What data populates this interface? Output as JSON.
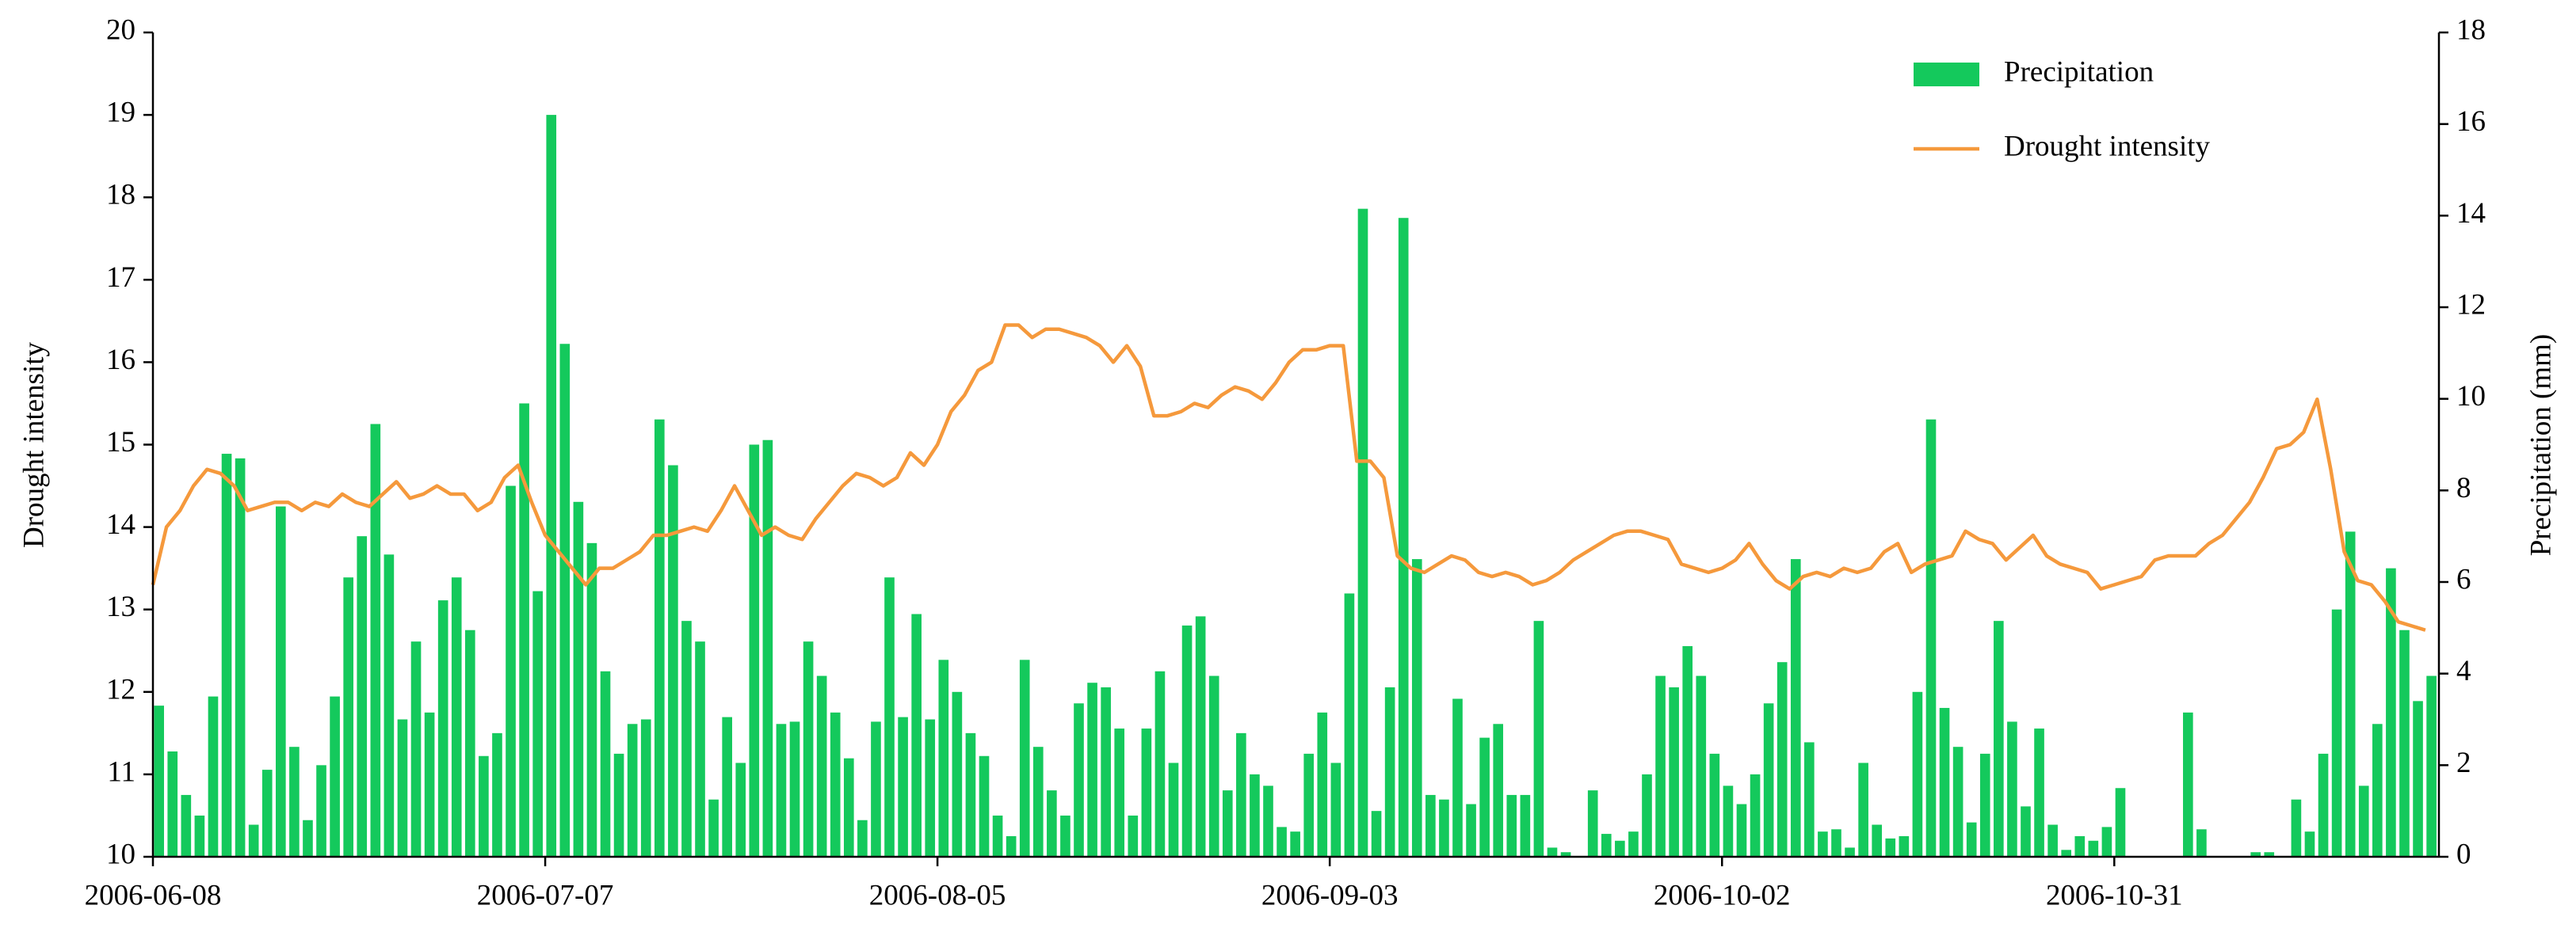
{
  "chart_data": {
    "type": "bar",
    "y_label": "Drought intensity",
    "y2_label": "Precipitation (mm)",
    "categories": [
      "2006-06-08",
      null,
      null,
      null,
      null,
      null,
      null,
      null,
      null,
      null,
      null,
      null,
      null,
      null,
      null,
      null,
      null,
      null,
      null,
      null,
      null,
      null,
      null,
      null,
      null,
      null,
      null,
      null,
      null,
      "2006-07-07",
      null,
      null,
      null,
      null,
      null,
      null,
      null,
      null,
      null,
      null,
      null,
      null,
      null,
      null,
      null,
      null,
      null,
      null,
      null,
      null,
      null,
      null,
      null,
      null,
      null,
      null,
      null,
      null,
      "2006-08-05",
      null,
      null,
      null,
      null,
      null,
      null,
      null,
      null,
      null,
      null,
      null,
      null,
      null,
      null,
      null,
      null,
      null,
      null,
      null,
      null,
      null,
      null,
      null,
      null,
      null,
      null,
      null,
      null,
      "2006-09-03",
      null,
      null,
      null,
      null,
      null,
      null,
      null,
      null,
      null,
      null,
      null,
      null,
      null,
      null,
      null,
      null,
      null,
      null,
      null,
      null,
      null,
      null,
      null,
      null,
      null,
      null,
      null,
      null,
      "2006-10-02",
      null,
      null,
      null,
      null,
      null,
      null,
      null,
      null,
      null,
      null,
      null,
      null,
      null,
      null,
      null,
      null,
      null,
      null,
      null,
      null,
      null,
      null,
      null,
      null,
      null,
      null,
      null,
      null,
      "2006-10-31",
      null,
      null,
      null,
      null,
      null,
      null,
      null,
      null,
      null,
      null,
      null,
      null,
      null,
      null,
      null,
      null,
      null,
      null,
      null,
      null,
      null,
      null,
      null
    ],
    "series": [
      {
        "name": "Precipitation",
        "type": "bar",
        "axis": "y2",
        "color": "#14c95c",
        "values": [
          3.3,
          2.3,
          1.35,
          0.9,
          3.5,
          8.8,
          8.7,
          0.7,
          1.9,
          7.65,
          2.4,
          0.8,
          2.0,
          3.5,
          6.1,
          7.0,
          9.45,
          6.6,
          3.0,
          4.7,
          3.15,
          5.6,
          6.1,
          4.95,
          2.2,
          2.7,
          8.1,
          9.9,
          5.8,
          16.2,
          11.2,
          7.75,
          6.85,
          4.05,
          2.25,
          2.9,
          3.0,
          9.55,
          8.55,
          5.15,
          4.7,
          1.25,
          3.05,
          2.05,
          9.0,
          9.1,
          2.9,
          2.95,
          4.7,
          3.95,
          3.15,
          2.15,
          0.8,
          2.95,
          6.1,
          3.05,
          5.3,
          3.0,
          4.3,
          3.6,
          2.7,
          2.2,
          0.9,
          0.45,
          4.3,
          2.4,
          1.45,
          0.9,
          3.35,
          3.8,
          3.7,
          2.8,
          0.9,
          2.8,
          4.05,
          2.05,
          5.05,
          5.25,
          3.95,
          1.45,
          2.7,
          1.8,
          1.55,
          0.65,
          0.55,
          2.25,
          3.15,
          2.05,
          5.75,
          14.15,
          1.0,
          3.7,
          13.95,
          6.5,
          1.35,
          1.25,
          3.45,
          1.15,
          2.6,
          2.9,
          1.35,
          1.35,
          5.15,
          0.2,
          0.1,
          0,
          1.45,
          0.5,
          0.35,
          0.55,
          1.8,
          3.95,
          3.7,
          4.6,
          3.95,
          2.25,
          1.55,
          1.15,
          1.8,
          3.35,
          4.25,
          6.5,
          2.5,
          0.55,
          0.6,
          0.2,
          2.05,
          0.7,
          0.4,
          0.45,
          3.6,
          9.55,
          3.25,
          2.4,
          0.75,
          2.25,
          5.15,
          2.95,
          1.1,
          2.8,
          0.7,
          0.15,
          0.45,
          0.35,
          0.65,
          1.5,
          0,
          0,
          0,
          0,
          3.15,
          0.6,
          0,
          0,
          0,
          0.1,
          0.1,
          0,
          1.25,
          0.55,
          2.25,
          5.4,
          7.1,
          1.55,
          2.9,
          6.3,
          4.95,
          3.4,
          3.95
        ]
      },
      {
        "name": "Drought intensity",
        "type": "line",
        "color": "#f5993c",
        "values": [
          13.3,
          14.0,
          14.2,
          14.5,
          14.7,
          14.65,
          14.5,
          14.2,
          14.25,
          14.3,
          14.3,
          14.2,
          14.3,
          14.25,
          14.4,
          14.3,
          14.25,
          14.4,
          14.55,
          14.35,
          14.4,
          14.5,
          14.4,
          14.4,
          14.2,
          14.3,
          14.6,
          14.75,
          14.3,
          13.9,
          13.7,
          13.5,
          13.3,
          13.5,
          13.5,
          13.6,
          13.7,
          13.9,
          13.9,
          13.95,
          14.0,
          13.95,
          14.2,
          14.5,
          14.2,
          13.9,
          14.0,
          13.9,
          13.85,
          14.1,
          14.3,
          14.5,
          14.65,
          14.6,
          14.5,
          14.6,
          14.9,
          14.75,
          15.0,
          15.4,
          15.6,
          15.9,
          16.0,
          16.45,
          16.45,
          16.3,
          16.4,
          16.4,
          16.35,
          16.3,
          16.2,
          16.0,
          16.2,
          15.95,
          15.35,
          15.35,
          15.4,
          15.5,
          15.45,
          15.6,
          15.7,
          15.65,
          15.55,
          15.75,
          16.0,
          16.15,
          16.15,
          16.2,
          16.2,
          14.8,
          14.8,
          14.6,
          13.65,
          13.5,
          13.45,
          13.55,
          13.65,
          13.6,
          13.45,
          13.4,
          13.45,
          13.4,
          13.3,
          13.35,
          13.45,
          13.6,
          13.7,
          13.8,
          13.9,
          13.95,
          13.95,
          13.9,
          13.85,
          13.55,
          13.5,
          13.45,
          13.5,
          13.6,
          13.8,
          13.55,
          13.35,
          13.25,
          13.4,
          13.45,
          13.4,
          13.5,
          13.45,
          13.5,
          13.7,
          13.8,
          13.45,
          13.55,
          13.6,
          13.65,
          13.95,
          13.85,
          13.8,
          13.6,
          13.75,
          13.9,
          13.65,
          13.55,
          13.5,
          13.45,
          13.25,
          13.3,
          13.35,
          13.4,
          13.6,
          13.65,
          13.65,
          13.65,
          13.8,
          13.9,
          14.1,
          14.3,
          14.6,
          14.95,
          15.0,
          15.15,
          15.55,
          14.7,
          13.7,
          13.35,
          13.3,
          13.1,
          12.85,
          12.8,
          12.75
        ]
      }
    ],
    "ylim": [
      10,
      20
    ],
    "yticks": [
      10,
      11,
      12,
      13,
      14,
      15,
      16,
      17,
      18,
      19,
      20
    ],
    "y2lim": [
      0,
      18
    ],
    "y2ticks": [
      0,
      2,
      4,
      6,
      8,
      10,
      12,
      14,
      16,
      18
    ],
    "grid": false,
    "legend": "upper right"
  }
}
